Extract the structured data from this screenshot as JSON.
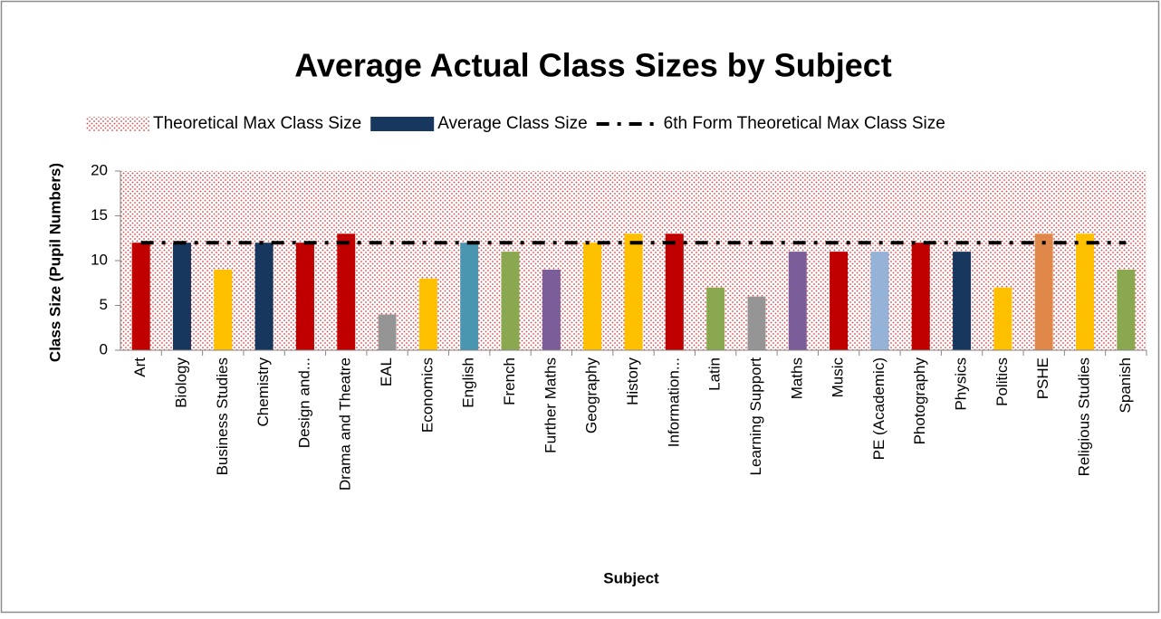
{
  "chart_data": {
    "type": "bar",
    "title": "Average Actual Class Sizes by Subject",
    "x_label": "Subject",
    "y_label": "Class Size (Pupil Numbers)",
    "categories": [
      "Art",
      "Biology",
      "Business Studies",
      "Chemistry",
      "Design and...",
      "Drama and Theatre",
      "EAL",
      "Economics",
      "English",
      "French",
      "Further Maths",
      "Geography",
      "History",
      "Information...",
      "Latin",
      "Learning Support",
      "Maths",
      "Music",
      "PE (Academic)",
      "Photography",
      "Physics",
      "Politics",
      "PSHE",
      "Religious Studies",
      "Spanish"
    ],
    "series": [
      {
        "name": "Theoretical Max Class Size",
        "type": "area",
        "color": "#e04040",
        "values": [
          20,
          20,
          20,
          20,
          20,
          20,
          20,
          20,
          20,
          20,
          20,
          20,
          20,
          20,
          20,
          20,
          20,
          20,
          20,
          20,
          20,
          20,
          20,
          20,
          20
        ]
      },
      {
        "name": "Average Class Size",
        "type": "bar",
        "color": "#17375e",
        "colors": [
          "#c00000",
          "#17375e",
          "#ffc000",
          "#17375e",
          "#c00000",
          "#c00000",
          "#959595",
          "#ffc000",
          "#4a96b0",
          "#8aa84f",
          "#7b5e99",
          "#ffc000",
          "#ffc000",
          "#c00000",
          "#8aa84f",
          "#959595",
          "#7b5e99",
          "#c00000",
          "#95b3d7",
          "#c00000",
          "#17375e",
          "#ffc000",
          "#e0884a",
          "#ffc000",
          "#8aa84f"
        ],
        "values": [
          12,
          12,
          9,
          12,
          12,
          13,
          4,
          8,
          12,
          11,
          9,
          12,
          13,
          13,
          7,
          6,
          11,
          11,
          11,
          12,
          11,
          7,
          13,
          13,
          9
        ]
      },
      {
        "name": "6th Form Theoretical Max Class Size",
        "type": "line",
        "color": "#000000",
        "values": [
          12,
          12,
          12,
          12,
          12,
          12,
          12,
          12,
          12,
          12,
          12,
          12,
          12,
          12,
          12,
          12,
          12,
          12,
          12,
          12,
          12,
          12,
          12,
          12,
          12
        ]
      }
    ],
    "ylim": [
      0,
      20
    ],
    "yticks": [
      0,
      5,
      10,
      15,
      20
    ],
    "legend": "top"
  }
}
